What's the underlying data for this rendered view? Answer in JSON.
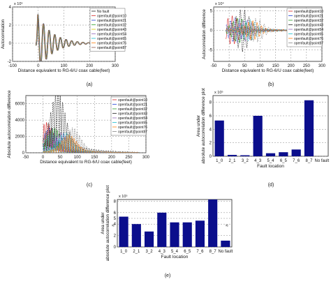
{
  "chart_data": [
    {
      "type": "line",
      "panel_label": "(a)",
      "exponent": "x 10⁵",
      "xlabel": "Distance equivalent to RG-6/U coax cable(feet)",
      "ylabel": "Autocorrelation",
      "xlim": [
        -100,
        300
      ],
      "ylim": [
        -2,
        4
      ],
      "xticks": [
        "-100",
        "0",
        "100",
        "200",
        "300"
      ],
      "yticks": [
        "-2",
        "0",
        "2",
        "4"
      ],
      "grid": true,
      "legend_position": "right",
      "legend": [
        "No fault",
        "openfault@point10",
        "openfault@point21",
        "openfault@point32",
        "openfault@point43",
        "openfault@point54",
        "openfault@point65",
        "openfault@point76",
        "openfault@point87"
      ],
      "colors": [
        "#222222",
        "#d62728",
        "#1f3fd6",
        "#2ca02c",
        "#d4c800",
        "#9467bd",
        "#17becf",
        "#ff7f0e",
        "#8c564b"
      ],
      "series_shape": {
        "peak_x": 0,
        "peak_y": 3.2,
        "min_y": -1.2,
        "period_ft": 22,
        "decay_ft": 55,
        "extent_ft": [
          -10,
          245
        ]
      }
    },
    {
      "type": "line",
      "panel_label": "(b)",
      "exponent": "x 10⁴",
      "xlabel": "Distance equivalent to RG-6/U coax cable(feet)",
      "ylabel": "Autocorrelation difference",
      "xlim": [
        -50,
        300
      ],
      "ylim": [
        -8,
        6
      ],
      "xticks": [
        "-50",
        "0",
        "50",
        "100",
        "150",
        "200",
        "250",
        "300"
      ],
      "yticks": [
        "-5",
        "0",
        "5"
      ],
      "grid": true,
      "legend_position": "top-right",
      "legend": [
        "openfault@point10",
        "openfault@point21",
        "openfault@point32",
        "openfault@point43",
        "openfault@point54",
        "openfault@point65",
        "openfault@point76",
        "openfault@point87"
      ],
      "colors": [
        "#d62728",
        "#1f3fd6",
        "#2ca02c",
        "#222222",
        "#9467bd",
        "#17becf",
        "#ff7f0e",
        "#888888"
      ],
      "series_shape": {
        "fault_x": [
          10,
          21,
          32,
          43,
          54,
          65,
          76,
          87
        ],
        "amplitude": [
          3.0,
          2.6,
          2.6,
          4.5,
          2.2,
          2.2,
          2.0,
          2.5
        ],
        "extent_ft": [
          -10,
          250
        ]
      }
    },
    {
      "type": "line",
      "panel_label": "(c)",
      "exponent": "",
      "xlabel": "Distance equivalent to RG-6/U coax cable(feet)",
      "ylabel": "Absolute autocorrelation difference",
      "xlim": [
        -50,
        300
      ],
      "ylim": [
        0,
        7000
      ],
      "xticks": [
        "-50",
        "0",
        "50",
        "100",
        "150",
        "200",
        "250",
        "300"
      ],
      "yticks": [
        "0",
        "2000",
        "4000",
        "6000"
      ],
      "grid": true,
      "legend_position": "top-right",
      "legend": [
        "openfault@point10",
        "openfault@point21",
        "openfault@point32",
        "openfault@point43",
        "openfault@point54",
        "openfault@point65",
        "openfault@point76",
        "openfault@point87"
      ],
      "colors": [
        "#d62728",
        "#1f3fd6",
        "#2ca02c",
        "#222222",
        "#9467bd",
        "#17becf",
        "#ff7f0e",
        "#888888"
      ],
      "series_shape": {
        "fault_x": [
          10,
          21,
          32,
          43,
          54,
          65,
          76,
          87
        ],
        "amplitude": [
          3000,
          2500,
          2500,
          6200,
          2000,
          2000,
          1800,
          2500
        ],
        "extent_ft": [
          0,
          280
        ]
      }
    },
    {
      "type": "bar",
      "panel_label": "(d)",
      "exponent": "x 10⁵",
      "xlabel": "Fault location",
      "ylabel": "Area under absolute autocorrelation difference plot",
      "categories": [
        "1_0",
        "2_1",
        "3_2",
        "4_3",
        "5_4",
        "6_5",
        "7_6",
        "8_7",
        "No fault"
      ],
      "values": [
        5.3,
        0.2,
        0.15,
        6.0,
        0.45,
        0.6,
        1.0,
        8.3,
        0
      ],
      "ylim": [
        0,
        9
      ],
      "yticks": [
        "0",
        "2",
        "4",
        "6",
        "8"
      ],
      "bar_color": "#0b0e8c",
      "grid": true
    },
    {
      "type": "bar",
      "panel_label": "(e)",
      "exponent": "x 10⁵",
      "xlabel": "Fault location",
      "ylabel": "Area under absolute autocorrelation difference plot",
      "categories": [
        "1_0",
        "2_1",
        "3_2",
        "4_3",
        "5_4",
        "6_5",
        "7_6",
        "8_7",
        "No fault"
      ],
      "values": [
        5.3,
        4.0,
        2.7,
        6.0,
        4.3,
        4.3,
        4.6,
        8.3,
        1.1
      ],
      "ylim": [
        0,
        8.3
      ],
      "yticks": [
        "0",
        "2",
        "4",
        "5",
        "6",
        "8"
      ],
      "axis_break": true,
      "bar_color": "#0b0e8c",
      "grid": true
    }
  ]
}
